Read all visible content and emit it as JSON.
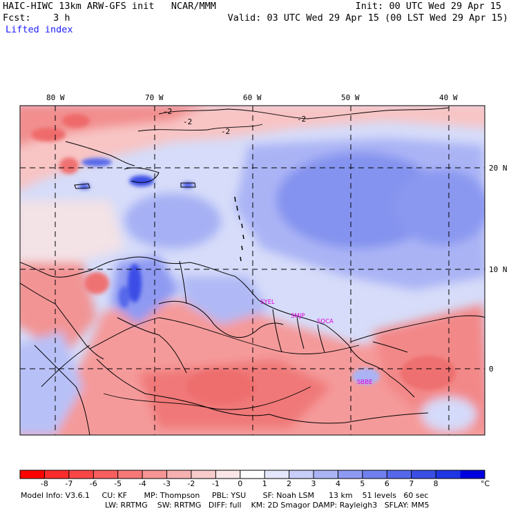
{
  "header": {
    "title": "HAIC-HIWC 13km ARW-GFS init   NCAR/MMM",
    "forecast": "Fcst:    3 h",
    "field": "Lifted index",
    "init": "Init: 00 UTC Wed 29 Apr 15",
    "valid": "Valid: 03 UTC Wed 29 Apr 15 (00 LST Wed 29 Apr 15)"
  },
  "map": {
    "longitude_labels": [
      "80 W",
      "70 W",
      "60 W",
      "50 W",
      "40 W"
    ],
    "latitude_labels": [
      "20 N",
      "10 N",
      "0"
    ],
    "contour_labels": [
      "-2",
      "-2",
      "-2",
      "-2"
    ],
    "stations": [
      "SYEL",
      "SMJP",
      "SOCA",
      "SBBE"
    ],
    "colors": {
      "warm_strong": "#f07070",
      "warm_light": "#f9c8c8",
      "neutral": "#f8f4f4",
      "cool_light": "#c8d0fa",
      "cool_mid": "#8c9cf2",
      "cool_strong": "#4a5ce8",
      "station": "#e000e0"
    }
  },
  "colorbar": {
    "ticks": [
      "-8",
      "-7",
      "-6",
      "-5",
      "-4",
      "-3",
      "-2",
      "-1",
      "0",
      "1",
      "2",
      "3",
      "4",
      "5",
      "6",
      "7",
      "8"
    ],
    "unit": "°C",
    "colors": [
      "#ff0000",
      "#fd2c2c",
      "#fc4646",
      "#fa5e5e",
      "#f87878",
      "#f79494",
      "#f7b0b0",
      "#f9cccc",
      "#fae6e6",
      "#ffffff",
      "#e4e6fb",
      "#c8cef8",
      "#aab4f5",
      "#8e9af2",
      "#7080ee",
      "#5668ea",
      "#3a4ee6",
      "#1f36e4",
      "#0000e0"
    ]
  },
  "footer": {
    "line1": "Model Info: V3.6.1     CU: KF       MP: Thompson     PBL: YSU       SF: Noah LSM      13 km    51 levels   60 sec",
    "line2": "LW: RRTMG    SW: RRTMG   DIFF: full    KM: 2D Smagor DAMP: Rayleigh3   SFLAY: MM5"
  }
}
